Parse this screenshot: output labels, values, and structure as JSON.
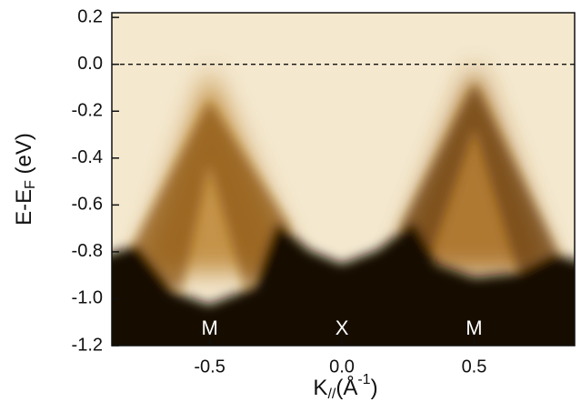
{
  "chart_data": {
    "type": "image",
    "xlabel": {
      "main": "K",
      "sub": "//",
      "unit": "(Å",
      "sup": "-1",
      "close": ")"
    },
    "ylabel": {
      "main": "E-E",
      "sub": "F",
      "unit": " (eV)"
    },
    "xlim": [
      -0.87,
      0.88
    ],
    "ylim": [
      -1.2,
      0.22
    ],
    "xticks": [
      -0.5,
      {
        "value": 0,
        "label": "0.0"
      },
      0.5
    ],
    "yticks": [
      0.2,
      {
        "value": 0,
        "label": "0.0"
      },
      -0.2,
      -0.4,
      -0.6,
      -0.8,
      {
        "value": -1,
        "label": "-1.0"
      },
      -1.2
    ],
    "hline": 0,
    "annotations": [
      {
        "text": "M",
        "x": -0.5
      },
      {
        "text": "X",
        "x": 0
      },
      {
        "text": "M",
        "x": 0.5
      }
    ]
  }
}
